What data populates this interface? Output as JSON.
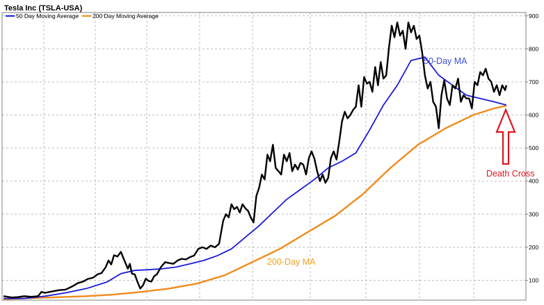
{
  "chart_data": {
    "type": "line",
    "title": "Tesla Inc (TSLA-USA)",
    "legend": [
      "50 Day Moving Average",
      "200 Day Moving Average"
    ],
    "legend_position": "top-left",
    "y_axis_side": "right",
    "ylim": [
      40,
      910
    ],
    "yticks": [
      100,
      200,
      300,
      400,
      500,
      600,
      700,
      800,
      900
    ],
    "grid": true,
    "colors": {
      "price": "#000000",
      "ma50": "#1a1adb",
      "ma200": "#f08a1c",
      "arrow": "#e0141e",
      "annotation_50": "#3a4fd4",
      "annotation_200": "#f0a020",
      "annotation_cross": "#e0141e"
    },
    "annotations": {
      "ma50_label": "50-Day MA",
      "ma200_label": "200-Day MA",
      "cross_label": "Death Cross"
    },
    "series": [
      {
        "name": "TSLA",
        "x": [
          0,
          6,
          12,
          20,
          30,
          40,
          50,
          55,
          60,
          70,
          80,
          90,
          100,
          108,
          115,
          122,
          130,
          136,
          142,
          148,
          152,
          156,
          160,
          165,
          170,
          175,
          180,
          183,
          186,
          190,
          194,
          198,
          202,
          206,
          210,
          214,
          218,
          222,
          228,
          234,
          240,
          246,
          252,
          258,
          264,
          270,
          276,
          282,
          288,
          294,
          300,
          306,
          312,
          318,
          322,
          326,
          330,
          334,
          338,
          342,
          346,
          350,
          354,
          358,
          362,
          366,
          370,
          374,
          378,
          382,
          386,
          390,
          394,
          398,
          402,
          406,
          410,
          414,
          418,
          422,
          426,
          430,
          434,
          438,
          442,
          446,
          450,
          454,
          458,
          462,
          466,
          470,
          474,
          478,
          482,
          486,
          490,
          494,
          498,
          502,
          506,
          510,
          514,
          518,
          522,
          526,
          530,
          534,
          538,
          542,
          546,
          550,
          554,
          558,
          562,
          566,
          570,
          574,
          578,
          582,
          586,
          590,
          594,
          598,
          602,
          606,
          610,
          614,
          618,
          622,
          626,
          630,
          634,
          638,
          642,
          646,
          650,
          654,
          658,
          662,
          666,
          670,
          674,
          678,
          682,
          686,
          690,
          694,
          698,
          702,
          706,
          710,
          714,
          718,
          722,
          726,
          728
        ],
        "values": [
          52,
          50,
          48,
          49,
          52,
          50,
          52,
          65,
          62,
          66,
          70,
          72,
          82,
          92,
          96,
          104,
          108,
          118,
          122,
          140,
          160,
          148,
          176,
          172,
          186,
          160,
          135,
          150,
          120,
          118,
          95,
          75,
          85,
          105,
          98,
          96,
          112,
          118,
          140,
          155,
          152,
          150,
          160,
          165,
          163,
          170,
          175,
          195,
          200,
          195,
          205,
          200,
          210,
          280,
          300,
          290,
          330,
          315,
          322,
          305,
          330,
          318,
          310,
          290,
          275,
          355,
          380,
          420,
          405,
          480,
          460,
          510,
          440,
          430,
          420,
          480,
          460,
          485,
          430,
          450,
          435,
          455,
          450,
          420,
          470,
          490,
          468,
          430,
          400,
          420,
          395,
          410,
          470,
          490,
          465,
          520,
          580,
          610,
          590,
          600,
          615,
          625,
          690,
          625,
          715,
          695,
          700,
          670,
          745,
          690,
          760,
          710,
          720,
          805,
          870,
          835,
          880,
          840,
          855,
          800,
          880,
          850,
          870,
          830,
          840,
          790,
          720,
          680,
          700,
          640,
          625,
          560,
          660,
          705,
          650,
          630,
          690,
          680,
          710,
          640,
          660,
          650,
          650,
          620,
          700,
          690,
          730,
          720,
          740,
          710,
          700,
          670,
          690,
          660,
          690,
          675,
          690
        ],
        "note_x": "x = trading days from chart start (unlabeled date axis)"
      }
    ]
  },
  "ma_series": {
    "ma50_x": [
      0,
      30,
      60,
      90,
      120,
      150,
      170,
      190,
      210,
      230,
      250,
      270,
      290,
      310,
      330,
      350,
      370,
      390,
      410,
      430,
      450,
      470,
      490,
      510,
      530,
      550,
      570,
      590,
      610,
      630,
      650,
      670,
      690,
      710,
      728
    ],
    "ma50_values": [
      45,
      45,
      52,
      62,
      75,
      95,
      120,
      130,
      132,
      135,
      140,
      150,
      160,
      175,
      195,
      230,
      265,
      305,
      345,
      375,
      405,
      440,
      460,
      485,
      555,
      630,
      690,
      765,
      775,
      720,
      690,
      660,
      650,
      640,
      630
    ],
    "ma200_x": [
      0,
      40,
      80,
      120,
      160,
      200,
      240,
      280,
      320,
      360,
      400,
      440,
      480,
      520,
      560,
      600,
      640,
      680,
      710,
      728
    ],
    "ma200_values": [
      43,
      46,
      49,
      52,
      57,
      65,
      75,
      90,
      115,
      155,
      195,
      245,
      295,
      360,
      440,
      510,
      560,
      600,
      620,
      628
    ]
  }
}
